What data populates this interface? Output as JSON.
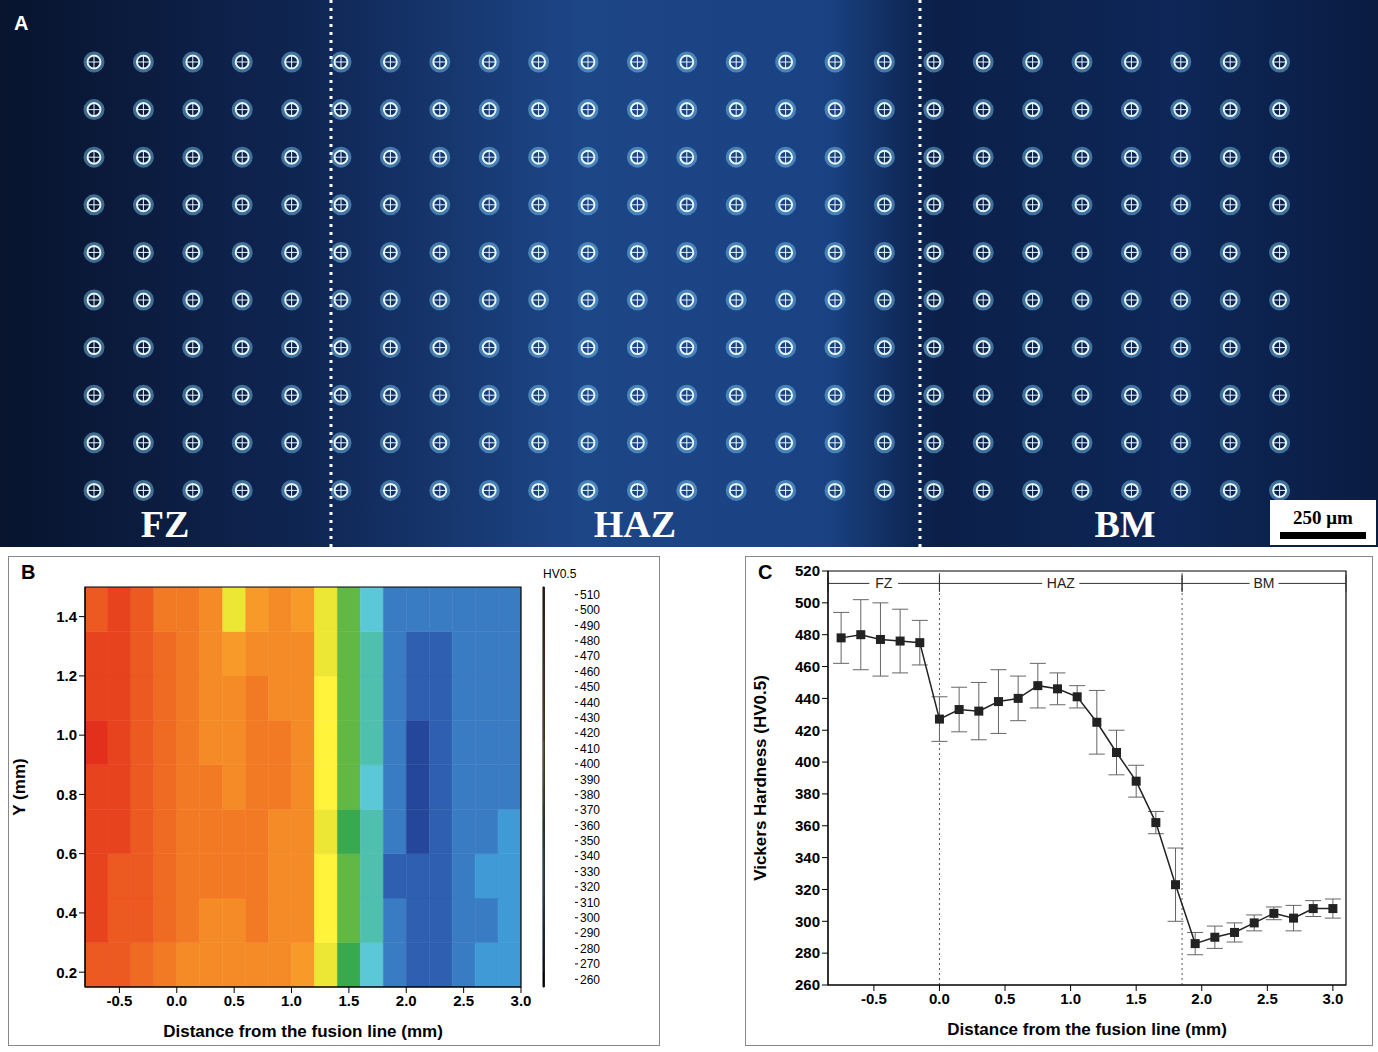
{
  "image_panel": {
    "panel": "A",
    "zones": [
      "FZ",
      "HAZ",
      "BM"
    ],
    "scale_bar": "250 μm"
  },
  "chart_data": [
    {
      "panel": "B",
      "type": "heatmap",
      "x_label": "Distance from the fusion line (mm)",
      "y_label": "Y (mm)",
      "xlim": [
        -0.8,
        3.0
      ],
      "ylim": [
        0.15,
        1.5
      ],
      "xticks": [
        -0.5,
        {
          "value": 0,
          "label": "0.0"
        },
        0.5,
        {
          "value": 1,
          "label": "1.0"
        },
        1.5,
        {
          "value": 2,
          "label": "2.0"
        },
        2.5,
        {
          "value": 3,
          "label": "3.0"
        }
      ],
      "yticks": [
        0.2,
        0.4,
        0.6,
        0.8,
        {
          "value": 1,
          "label": "1.0"
        },
        1.2,
        1.4
      ],
      "x_edges": [
        -0.8,
        -0.6,
        -0.4,
        -0.2,
        0.0,
        0.2,
        0.4,
        0.6,
        0.8,
        1.0,
        1.2,
        1.4,
        1.6,
        1.8,
        2.0,
        2.2,
        2.4,
        2.6,
        2.8,
        3.0
      ],
      "y_edges": [
        0.15,
        0.3,
        0.45,
        0.6,
        0.75,
        0.9,
        1.05,
        1.2,
        1.35,
        1.5
      ],
      "cells": [
        [
          475,
          470,
          465,
          455,
          445,
          440,
          440,
          445,
          440,
          435,
          405,
          365,
          335,
          300,
          290,
          295,
          305,
          310,
          310
        ],
        [
          480,
          475,
          470,
          460,
          450,
          445,
          445,
          450,
          445,
          440,
          410,
          370,
          340,
          300,
          290,
          295,
          300,
          305,
          310
        ],
        [
          485,
          475,
          470,
          460,
          450,
          450,
          455,
          450,
          445,
          440,
          410,
          370,
          340,
          295,
          290,
          295,
          300,
          310,
          315
        ],
        [
          480,
          480,
          470,
          465,
          455,
          455,
          450,
          455,
          445,
          440,
          405,
          365,
          340,
          300,
          285,
          290,
          300,
          305,
          310
        ],
        [
          485,
          480,
          475,
          460,
          455,
          450,
          445,
          455,
          450,
          440,
          410,
          370,
          335,
          300,
          285,
          290,
          300,
          305,
          305
        ],
        [
          490,
          480,
          475,
          465,
          455,
          445,
          445,
          450,
          450,
          440,
          410,
          370,
          340,
          300,
          280,
          290,
          300,
          305,
          305
        ],
        [
          485,
          485,
          470,
          465,
          450,
          445,
          440,
          450,
          445,
          440,
          410,
          370,
          340,
          305,
          290,
          295,
          300,
          305,
          305
        ],
        [
          480,
          480,
          470,
          460,
          455,
          445,
          435,
          440,
          445,
          440,
          405,
          370,
          340,
          300,
          295,
          295,
          300,
          305,
          305
        ],
        [
          475,
          480,
          470,
          455,
          450,
          440,
          400,
          435,
          440,
          435,
          405,
          370,
          335,
          305,
          300,
          300,
          305,
          305,
          305
        ]
      ],
      "colorbar": {
        "title": "HV0.5",
        "range": [
          255,
          515
        ],
        "ticks": [
          260,
          270,
          280,
          290,
          300,
          310,
          320,
          330,
          340,
          350,
          360,
          370,
          380,
          390,
          400,
          410,
          420,
          430,
          440,
          450,
          460,
          470,
          480,
          490,
          500,
          510
        ],
        "colors": [
          "#000000",
          "#1a2f7a",
          "#24479b",
          "#2f5fb0",
          "#3a7cc4",
          "#3f9ad6",
          "#4db6e3",
          "#5bc8d8",
          "#4fbfae",
          "#3fb184",
          "#39a94f",
          "#62b845",
          "#97c93d",
          "#c6d935",
          "#ece635",
          "#fff33b",
          "#f9a82b",
          "#f79a2a",
          "#f58b26",
          "#f27a24",
          "#ef6a22",
          "#ec5921",
          "#e8431f",
          "#e2301d",
          "#d8221b",
          "#c8161b"
        ]
      },
      "grid": false
    },
    {
      "panel": "C",
      "type": "line",
      "x_label": "Distance from the fusion line (mm)",
      "y_label": "Vickers Hardness (HV0.5)",
      "xlim": [
        -0.85,
        3.1
      ],
      "ylim": [
        260,
        520
      ],
      "xticks": [
        -0.5,
        {
          "value": 0,
          "label": "0.0"
        },
        0.5,
        {
          "value": 1,
          "label": "1.0"
        },
        1.5,
        {
          "value": 2,
          "label": "2.0"
        },
        2.5,
        {
          "value": 3,
          "label": "3.0"
        }
      ],
      "yticks": [
        260,
        280,
        300,
        320,
        340,
        360,
        380,
        400,
        420,
        440,
        460,
        480,
        500,
        520
      ],
      "x": [
        -0.75,
        -0.6,
        -0.45,
        -0.3,
        -0.15,
        0,
        0.15,
        0.3,
        0.45,
        0.6,
        0.75,
        0.9,
        1.05,
        1.2,
        1.35,
        1.5,
        1.65,
        1.8,
        1.95,
        2.1,
        2.25,
        2.4,
        2.55,
        2.7,
        2.85,
        3.0
      ],
      "values": [
        478,
        480,
        477,
        476,
        475,
        427,
        433,
        432,
        438,
        440,
        448,
        446,
        441,
        425,
        406,
        388,
        362,
        323,
        286,
        290,
        293,
        299,
        305,
        302,
        308,
        308
      ],
      "errors": [
        16,
        22,
        23,
        20,
        14,
        14,
        14,
        18,
        20,
        14,
        14,
        10,
        7,
        20,
        14,
        10,
        7,
        23,
        7,
        7,
        6,
        5,
        4,
        8,
        5,
        6
      ],
      "color": "#222222",
      "marker": "square",
      "line_style": "solid",
      "zones": [
        {
          "label": "FZ",
          "from": -0.85,
          "to": 0
        },
        {
          "label": "HAZ",
          "from": 0,
          "to": 1.85
        },
        {
          "label": "BM",
          "from": 1.85,
          "to": 3.1
        }
      ],
      "grid": false
    }
  ]
}
